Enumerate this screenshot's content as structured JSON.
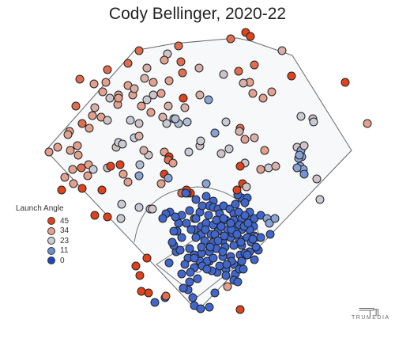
{
  "chart_data": {
    "type": "scatter",
    "title": "Cody Bellinger, 2020-22",
    "legend": {
      "title": "Launch Angle",
      "placement": "left",
      "entries": [
        {
          "label": "45",
          "color": "#e0431b"
        },
        {
          "label": "34",
          "color": "#e2a08e"
        },
        {
          "label": "23",
          "color": "#c9cbd4"
        },
        {
          "label": "11",
          "color": "#6b8fd6"
        },
        {
          "label": "0",
          "color": "#1e46c4"
        }
      ]
    },
    "grid": false,
    "points": [
      [
        311,
        41,
        50
      ],
      [
        317,
        46,
        50
      ],
      [
        292,
        49,
        40
      ],
      [
        226,
        58,
        40
      ],
      [
        176,
        64,
        40
      ],
      [
        212,
        68,
        25
      ],
      [
        162,
        80,
        40
      ],
      [
        229,
        78,
        40
      ],
      [
        208,
        76,
        34
      ],
      [
        186,
        86,
        30
      ],
      [
        322,
        82,
        40
      ],
      [
        252,
        86,
        30
      ],
      [
        283,
        94,
        25
      ],
      [
        231,
        92,
        40
      ],
      [
        302,
        90,
        40
      ],
      [
        214,
        102,
        34
      ],
      [
        194,
        104,
        34
      ],
      [
        183,
        99,
        30
      ],
      [
        194,
        120,
        25
      ],
      [
        136,
        88,
        40
      ],
      [
        101,
        100,
        40
      ],
      [
        119,
        106,
        34
      ],
      [
        134,
        104,
        34
      ],
      [
        162,
        108,
        34
      ],
      [
        139,
        124,
        25
      ],
      [
        168,
        120,
        34
      ],
      [
        204,
        118,
        34
      ],
      [
        130,
        116,
        34
      ],
      [
        150,
        120,
        34
      ],
      [
        120,
        136,
        30
      ],
      [
        96,
        134,
        40
      ],
      [
        186,
        126,
        23
      ],
      [
        232,
        124,
        45
      ],
      [
        264,
        126,
        15
      ],
      [
        253,
        120,
        30
      ],
      [
        316,
        104,
        34
      ],
      [
        308,
        105,
        30
      ],
      [
        320,
        118,
        34
      ],
      [
        333,
        124,
        34
      ],
      [
        344,
        116,
        34
      ],
      [
        369,
        96,
        45
      ],
      [
        357,
        64,
        30
      ],
      [
        170,
        112,
        30
      ],
      [
        213,
        134,
        30
      ],
      [
        234,
        136,
        30
      ],
      [
        179,
        134,
        34
      ],
      [
        149,
        132,
        34
      ],
      [
        150,
        124,
        34
      ],
      [
        220,
        150,
        23
      ],
      [
        237,
        154,
        20
      ],
      [
        211,
        156,
        23
      ],
      [
        226,
        156,
        20
      ],
      [
        206,
        148,
        30
      ],
      [
        286,
        154,
        23
      ],
      [
        304,
        162,
        40
      ],
      [
        303,
        166,
        30
      ],
      [
        222,
        150,
        20
      ],
      [
        128,
        148,
        34
      ],
      [
        136,
        152,
        25
      ],
      [
        165,
        152,
        23
      ],
      [
        176,
        156,
        25
      ],
      [
        191,
        142,
        34
      ],
      [
        117,
        146,
        34
      ],
      [
        113,
        162,
        34
      ],
      [
        104,
        156,
        40
      ],
      [
        88,
        166,
        34
      ],
      [
        86,
        170,
        34
      ],
      [
        98,
        184,
        34
      ],
      [
        73,
        186,
        34
      ],
      [
        62,
        192,
        34
      ],
      [
        89,
        190,
        34
      ],
      [
        99,
        196,
        34
      ],
      [
        103,
        212,
        40
      ],
      [
        92,
        214,
        34
      ],
      [
        82,
        224,
        34
      ],
      [
        111,
        222,
        34
      ],
      [
        93,
        232,
        34
      ],
      [
        104,
        238,
        45
      ],
      [
        78,
        240,
        45
      ],
      [
        129,
        240,
        45
      ],
      [
        112,
        208,
        34
      ],
      [
        118,
        214,
        23
      ],
      [
        136,
        212,
        25
      ],
      [
        140,
        210,
        45
      ],
      [
        152,
        208,
        45
      ],
      [
        156,
        220,
        34
      ],
      [
        162,
        230,
        34
      ],
      [
        147,
        186,
        25
      ],
      [
        150,
        180,
        23
      ],
      [
        155,
        182,
        23
      ],
      [
        170,
        174,
        23
      ],
      [
        176,
        172,
        30
      ],
      [
        188,
        196,
        25
      ],
      [
        177,
        208,
        20
      ],
      [
        182,
        190,
        30
      ],
      [
        208,
        192,
        34
      ],
      [
        214,
        198,
        45
      ],
      [
        213,
        202,
        40
      ],
      [
        219,
        206,
        34
      ],
      [
        239,
        192,
        23
      ],
      [
        253,
        184,
        25
      ],
      [
        254,
        178,
        23
      ],
      [
        272,
        168,
        15
      ],
      [
        290,
        188,
        23
      ],
      [
        280,
        194,
        25
      ],
      [
        310,
        176,
        34
      ],
      [
        322,
        174,
        30
      ],
      [
        310,
        206,
        25
      ],
      [
        304,
        210,
        45
      ],
      [
        335,
        190,
        34
      ],
      [
        340,
        212,
        23
      ],
      [
        330,
        214,
        34
      ],
      [
        349,
        210,
        30
      ],
      [
        376,
        186,
        25
      ],
      [
        381,
        190,
        15
      ],
      [
        385,
        184,
        25
      ],
      [
        382,
        198,
        15
      ],
      [
        380,
        210,
        15
      ],
      [
        384,
        214,
        15
      ],
      [
        376,
        212,
        15
      ],
      [
        385,
        220,
        12
      ],
      [
        401,
        226,
        25
      ],
      [
        405,
        252,
        23
      ],
      [
        381,
        147,
        23
      ],
      [
        396,
        150,
        25
      ],
      [
        241,
        244,
        45
      ],
      [
        237,
        244,
        45
      ],
      [
        236,
        240,
        45
      ],
      [
        230,
        244,
        40
      ],
      [
        208,
        220,
        45
      ],
      [
        204,
        232,
        34
      ],
      [
        176,
        222,
        15
      ],
      [
        176,
        262,
        23
      ],
      [
        190,
        264,
        20
      ],
      [
        154,
        258,
        23
      ],
      [
        153,
        276,
        23
      ],
      [
        136,
        274,
        45
      ],
      [
        120,
        272,
        45
      ],
      [
        193,
        264,
        25
      ],
      [
        213,
        225,
        15
      ],
      [
        261,
        232,
        15
      ],
      [
        261,
        248,
        5
      ],
      [
        270,
        254,
        5
      ],
      [
        265,
        260,
        5
      ],
      [
        270,
        262,
        5
      ],
      [
        276,
        264,
        5
      ],
      [
        283,
        260,
        5
      ],
      [
        291,
        264,
        5
      ],
      [
        298,
        258,
        5
      ],
      [
        306,
        250,
        5
      ],
      [
        301,
        246,
        5
      ],
      [
        300,
        240,
        45
      ],
      [
        307,
        232,
        45
      ],
      [
        312,
        236,
        25
      ],
      [
        313,
        250,
        5
      ],
      [
        310,
        256,
        5
      ],
      [
        296,
        270,
        5
      ],
      [
        278,
        270,
        5
      ],
      [
        264,
        272,
        5
      ],
      [
        253,
        268,
        5
      ],
      [
        246,
        276,
        5
      ],
      [
        236,
        282,
        5
      ],
      [
        226,
        282,
        5
      ],
      [
        224,
        292,
        5
      ],
      [
        230,
        300,
        5
      ],
      [
        246,
        290,
        5
      ],
      [
        255,
        286,
        5
      ],
      [
        261,
        282,
        5
      ],
      [
        270,
        284,
        5
      ],
      [
        279,
        280,
        5
      ],
      [
        286,
        278,
        5
      ],
      [
        296,
        278,
        5
      ],
      [
        306,
        276,
        5
      ],
      [
        316,
        274,
        5
      ],
      [
        322,
        276,
        5
      ],
      [
        316,
        268,
        5
      ],
      [
        330,
        272,
        5
      ],
      [
        338,
        276,
        15
      ],
      [
        341,
        282,
        15
      ],
      [
        321,
        286,
        5
      ],
      [
        316,
        290,
        5
      ],
      [
        306,
        290,
        5
      ],
      [
        298,
        288,
        5
      ],
      [
        288,
        290,
        5
      ],
      [
        276,
        292,
        5
      ],
      [
        267,
        296,
        5
      ],
      [
        255,
        296,
        5
      ],
      [
        259,
        304,
        5
      ],
      [
        270,
        306,
        5
      ],
      [
        282,
        304,
        5
      ],
      [
        292,
        300,
        5
      ],
      [
        303,
        302,
        5
      ],
      [
        313,
        300,
        5
      ],
      [
        322,
        298,
        5
      ],
      [
        318,
        306,
        5
      ],
      [
        306,
        310,
        5
      ],
      [
        296,
        310,
        5
      ],
      [
        285,
        312,
        5
      ],
      [
        274,
        314,
        5
      ],
      [
        265,
        318,
        5
      ],
      [
        255,
        320,
        5
      ],
      [
        246,
        322,
        5
      ],
      [
        238,
        326,
        5
      ],
      [
        253,
        330,
        5
      ],
      [
        265,
        330,
        5
      ],
      [
        282,
        324,
        5
      ],
      [
        292,
        324,
        5
      ],
      [
        304,
        322,
        5
      ],
      [
        316,
        318,
        5
      ],
      [
        327,
        316,
        5
      ],
      [
        322,
        328,
        5
      ],
      [
        306,
        330,
        5
      ],
      [
        296,
        334,
        5
      ],
      [
        286,
        340,
        5
      ],
      [
        275,
        344,
        5
      ],
      [
        262,
        330,
        5
      ],
      [
        246,
        338,
        5
      ],
      [
        234,
        334,
        5
      ],
      [
        230,
        346,
        5
      ],
      [
        240,
        356,
        5
      ],
      [
        250,
        352,
        5
      ],
      [
        238,
        366,
        5
      ],
      [
        232,
        364,
        5
      ],
      [
        244,
        376,
        5
      ],
      [
        246,
        386,
        5
      ],
      [
        254,
        390,
        5
      ],
      [
        272,
        370,
        5
      ],
      [
        286,
        348,
        5
      ],
      [
        298,
        346,
        5
      ],
      [
        296,
        354,
        5
      ],
      [
        301,
        356,
        5
      ],
      [
        223,
        318,
        5
      ],
      [
        220,
        310,
        5
      ],
      [
        214,
        332,
        5
      ],
      [
        196,
        382,
        5
      ],
      [
        209,
        376,
        5
      ],
      [
        210,
        374,
        40
      ],
      [
        188,
        370,
        45
      ],
      [
        179,
        368,
        45
      ],
      [
        177,
        348,
        45
      ],
      [
        172,
        336,
        45
      ],
      [
        186,
        326,
        45
      ],
      [
        235,
        244,
        5
      ],
      [
        248,
        252,
        5
      ],
      [
        256,
        260,
        5
      ],
      [
        240,
        266,
        5
      ],
      [
        215,
        268,
        5
      ],
      [
        210,
        270,
        5
      ],
      [
        206,
        276,
        5
      ],
      [
        248,
        276,
        5
      ],
      [
        242,
        290,
        5
      ],
      [
        272,
        296,
        5
      ],
      [
        248,
        300,
        5
      ],
      [
        265,
        388,
        5
      ],
      [
        324,
        300,
        15
      ],
      [
        324,
        312,
        5
      ],
      [
        310,
        320,
        5
      ],
      [
        288,
        362,
        34
      ],
      [
        304,
        391,
        45
      ],
      [
        342,
        296,
        5
      ],
      [
        278,
        336,
        5
      ],
      [
        268,
        342,
        5
      ],
      [
        256,
        336,
        5
      ],
      [
        246,
        326,
        5
      ],
      [
        220,
        292,
        5
      ],
      [
        218,
        306,
        5
      ],
      [
        303,
        284,
        5
      ],
      [
        294,
        294,
        5
      ],
      [
        284,
        298,
        5
      ],
      [
        276,
        304,
        5
      ],
      [
        266,
        312,
        5
      ],
      [
        255,
        312,
        5
      ],
      [
        240,
        314,
        5
      ],
      [
        228,
        316,
        5
      ],
      [
        230,
        272,
        5
      ],
      [
        222,
        274,
        5
      ],
      [
        309,
        286,
        5
      ],
      [
        320,
        302,
        5
      ],
      [
        330,
        300,
        5
      ],
      [
        313,
        322,
        5
      ],
      [
        303,
        340,
        5
      ],
      [
        308,
        340,
        5
      ],
      [
        282,
        318,
        5
      ],
      [
        270,
        326,
        5
      ],
      [
        262,
        340,
        5
      ],
      [
        241,
        344,
        5
      ],
      [
        348,
        276,
        15
      ],
      [
        293,
        330,
        5
      ],
      [
        287,
        334,
        5
      ],
      [
        293,
        290,
        5
      ],
      [
        274,
        278,
        5
      ],
      [
        280,
        286,
        5
      ],
      [
        260,
        290,
        5
      ],
      [
        302,
        268,
        5
      ],
      [
        314,
        282,
        5
      ],
      [
        300,
        296,
        5
      ],
      [
        283,
        276,
        5
      ],
      [
        292,
        282,
        5
      ],
      [
        305,
        306,
        5
      ],
      [
        310,
        272,
        5
      ],
      [
        437,
        104,
        45
      ],
      [
        465,
        156,
        34
      ],
      [
        397,
        154,
        23
      ],
      [
        378,
        200,
        15
      ],
      [
        379,
        196,
        15
      ]
    ]
  }
}
